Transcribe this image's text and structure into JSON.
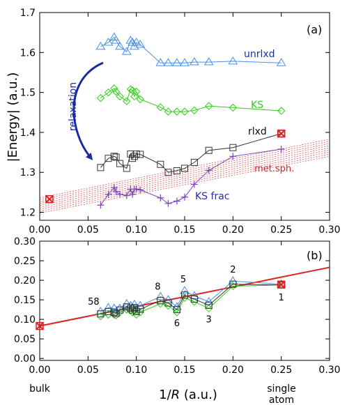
{
  "chart_data": [
    {
      "panel": "(a)",
      "type": "line",
      "ylabel": "|Energy|  (a.u.)",
      "xlim": [
        0,
        0.3
      ],
      "ylim": [
        1.18,
        1.7
      ],
      "xticks": [
        "0.00",
        "0.05",
        "0.10",
        "0.15",
        "0.20",
        "0.25",
        "0.30"
      ],
      "yticks": [
        "1.2",
        "1.3",
        "1.4",
        "1.5",
        "1.6",
        "1.7"
      ],
      "annotation": "relaxation",
      "series": [
        {
          "name": "unrlxd",
          "color": "#4a8fe0",
          "marker": "triangle",
          "x": [
            0.063,
            0.071,
            0.077,
            0.079,
            0.083,
            0.09,
            0.094,
            0.096,
            0.098,
            0.1,
            0.104,
            0.125,
            0.133,
            0.142,
            0.15,
            0.16,
            0.175,
            0.2,
            0.25
          ],
          "y": [
            1.615,
            1.625,
            1.638,
            1.63,
            1.615,
            1.602,
            1.63,
            1.625,
            1.615,
            1.625,
            1.62,
            1.574,
            1.574,
            1.574,
            1.574,
            1.576,
            1.576,
            1.578,
            1.574
          ]
        },
        {
          "name": "KS",
          "color": "#33cc1a",
          "marker": "diamond",
          "x": [
            0.063,
            0.071,
            0.077,
            0.079,
            0.083,
            0.09,
            0.094,
            0.096,
            0.098,
            0.1,
            0.104,
            0.125,
            0.133,
            0.142,
            0.15,
            0.16,
            0.175,
            0.2,
            0.25
          ],
          "y": [
            1.486,
            1.5,
            1.51,
            1.502,
            1.49,
            1.478,
            1.508,
            1.505,
            1.49,
            1.502,
            1.483,
            1.463,
            1.452,
            1.452,
            1.452,
            1.455,
            1.466,
            1.462,
            1.454
          ]
        },
        {
          "name": "rlxd",
          "color": "#333333",
          "marker": "square",
          "x": [
            0.063,
            0.071,
            0.077,
            0.079,
            0.083,
            0.09,
            0.094,
            0.096,
            0.098,
            0.1,
            0.104,
            0.125,
            0.133,
            0.142,
            0.15,
            0.16,
            0.175,
            0.2,
            0.25
          ],
          "y": [
            1.312,
            1.335,
            1.34,
            1.338,
            1.322,
            1.31,
            1.346,
            1.335,
            1.34,
            1.346,
            1.345,
            1.32,
            1.3,
            1.304,
            1.31,
            1.325,
            1.355,
            1.362,
            1.397
          ]
        },
        {
          "name": "KS frac",
          "color": "#7744bb",
          "marker": "plus",
          "x": [
            0.063,
            0.071,
            0.077,
            0.079,
            0.083,
            0.09,
            0.094,
            0.096,
            0.098,
            0.1,
            0.104,
            0.125,
            0.133,
            0.142,
            0.15,
            0.16,
            0.175,
            0.2,
            0.25
          ],
          "y": [
            1.218,
            1.245,
            1.262,
            1.252,
            1.245,
            1.242,
            1.258,
            1.245,
            1.258,
            1.258,
            1.256,
            1.236,
            1.222,
            1.228,
            1.238,
            1.27,
            1.305,
            1.34,
            1.358
          ]
        }
      ],
      "band": {
        "name": "met.sph.",
        "color": "#e05050",
        "x": [
          0.0,
          0.3
        ],
        "y_low": [
          1.198,
          1.34
        ],
        "y_high": [
          1.236,
          1.383
        ]
      },
      "markers": [
        {
          "color": "#e02020",
          "x": 0.01,
          "y": 1.233
        },
        {
          "color": "#e02020",
          "x": 0.25,
          "y": 1.397
        }
      ]
    },
    {
      "panel": "(b)",
      "type": "line",
      "xlabel_prefix": "1/",
      "xlabel_var": "R",
      "xlabel_suffix": " (a.u.)",
      "xlim": [
        0,
        0.3
      ],
      "ylim": [
        -0.005,
        0.3
      ],
      "xticks": [
        "0.00",
        "0.05",
        "0.10",
        "0.15",
        "0.20",
        "0.25",
        "0.30"
      ],
      "yticks": [
        "0.00",
        "0.05",
        "0.10",
        "0.15",
        "0.20",
        "0.25",
        "0.30"
      ],
      "xtick_notes": {
        "bulk": "bulk",
        "single1": "single",
        "single2": "atom"
      },
      "series": [
        {
          "name": "unrlxd",
          "color": "#4a8fe0",
          "marker": "triangle",
          "x": [
            0.063,
            0.071,
            0.077,
            0.079,
            0.083,
            0.09,
            0.094,
            0.096,
            0.098,
            0.1,
            0.104,
            0.125,
            0.133,
            0.142,
            0.15,
            0.16,
            0.175,
            0.2,
            0.25
          ],
          "y": [
            0.12,
            0.13,
            0.128,
            0.118,
            0.128,
            0.14,
            0.135,
            0.13,
            0.138,
            0.128,
            0.135,
            0.158,
            0.15,
            0.132,
            0.173,
            0.16,
            0.145,
            0.198,
            0.19
          ]
        },
        {
          "name": "KS",
          "color": "#33cc1a",
          "marker": "diamond",
          "x": [
            0.063,
            0.071,
            0.077,
            0.079,
            0.083,
            0.09,
            0.094,
            0.096,
            0.098,
            0.1,
            0.104,
            0.125,
            0.133,
            0.142,
            0.15,
            0.16,
            0.175,
            0.2,
            0.25
          ],
          "y": [
            0.108,
            0.112,
            0.112,
            0.11,
            0.118,
            0.125,
            0.122,
            0.118,
            0.125,
            0.112,
            0.118,
            0.14,
            0.135,
            0.118,
            0.155,
            0.145,
            0.128,
            0.185,
            0.188
          ]
        },
        {
          "name": "rlxd",
          "color": "#333333",
          "marker": "square",
          "x": [
            0.063,
            0.071,
            0.077,
            0.079,
            0.083,
            0.09,
            0.094,
            0.096,
            0.098,
            0.1,
            0.104,
            0.125,
            0.133,
            0.142,
            0.15,
            0.16,
            0.175,
            0.2,
            0.25
          ],
          "y": [
            0.114,
            0.12,
            0.118,
            0.115,
            0.124,
            0.132,
            0.128,
            0.124,
            0.13,
            0.12,
            0.126,
            0.148,
            0.142,
            0.125,
            0.162,
            0.152,
            0.136,
            0.19,
            0.188
          ]
        }
      ],
      "fit_line": {
        "color": "#e02020",
        "x": [
          0.0,
          0.3
        ],
        "y": [
          0.083,
          0.233
        ]
      },
      "markers": [
        {
          "color": "#e02020",
          "x": 0.0,
          "y": 0.083
        },
        {
          "color": "#e02020",
          "x": 0.25,
          "y": 0.189
        }
      ],
      "point_labels": [
        {
          "text": "58",
          "x": 0.063,
          "y": 0.12
        },
        {
          "text": "8",
          "x": 0.125,
          "y": 0.158
        },
        {
          "text": "5",
          "x": 0.15,
          "y": 0.173
        },
        {
          "text": "6",
          "x": 0.142,
          "y": 0.118
        },
        {
          "text": "3",
          "x": 0.175,
          "y": 0.128
        },
        {
          "text": "2",
          "x": 0.2,
          "y": 0.198
        },
        {
          "text": "1",
          "x": 0.25,
          "y": 0.188
        }
      ]
    }
  ]
}
